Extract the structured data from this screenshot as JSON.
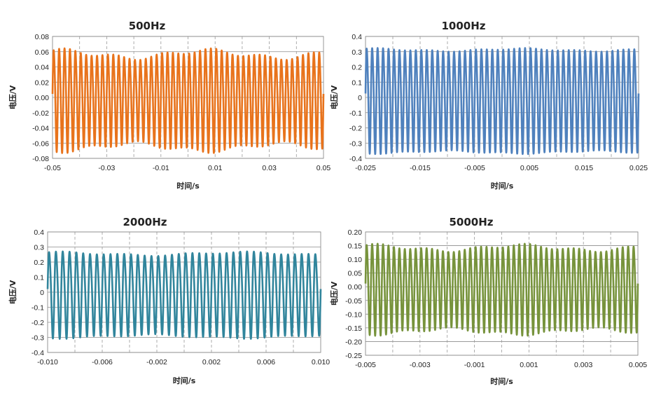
{
  "chart_data": [
    {
      "type": "line",
      "title": "500Hz",
      "xlabel": "时间/s",
      "ylabel": "电压/V",
      "xlim": [
        -0.05,
        0.05
      ],
      "ylim": [
        -0.08,
        0.08
      ],
      "xticks": [
        "-0.05",
        "-0.03",
        "-0.01",
        "0.01",
        "0.03",
        "0.05"
      ],
      "yticks": [
        "0.08",
        "0.06",
        "0.04",
        "0.02",
        "0.00",
        "-0.02",
        "-0.04",
        "-0.06",
        "-0.08"
      ],
      "color": "#E8731C",
      "series": [
        {
          "cycles": 50,
          "amplitude": 0.06,
          "amplitude_variation": 0.005
        }
      ]
    },
    {
      "type": "line",
      "title": "1000Hz",
      "xlabel": "时间/s",
      "ylabel": "电压/V",
      "xlim": [
        -0.025,
        0.025
      ],
      "ylim": [
        -0.4,
        0.4
      ],
      "xticks": [
        "-0.025",
        "-0.015",
        "-0.005",
        "0.005",
        "0.015",
        "0.025"
      ],
      "yticks": [
        "0.4",
        "0.3",
        "0.2",
        "0.1",
        "0",
        "-0.1",
        "-0.2",
        "-0.3",
        "-0.4"
      ],
      "color": "#4F81BD",
      "series": [
        {
          "cycles": 50,
          "amplitude": 0.33,
          "amplitude_variation": 0.008
        }
      ]
    },
    {
      "type": "line",
      "title": "2000Hz",
      "xlabel": "时间/s",
      "ylabel": "电压/V",
      "xlim": [
        -0.01,
        0.01
      ],
      "ylim": [
        -0.4,
        0.4
      ],
      "xticks": [
        "-0.010",
        "-0.006",
        "-0.002",
        "0.002",
        "0.006",
        "0.010"
      ],
      "yticks": [
        "0.4",
        "0.3",
        "0.2",
        "0.1",
        "0",
        "-0.1",
        "-0.2",
        "-0.3",
        "-0.4"
      ],
      "color": "#31859C",
      "series": [
        {
          "cycles": 40,
          "amplitude": 0.27,
          "amplitude_variation": 0.01
        }
      ]
    },
    {
      "type": "line",
      "title": "5000Hz",
      "xlabel": "时间/s",
      "ylabel": "电压/V",
      "xlim": [
        -0.005,
        0.005
      ],
      "ylim": [
        -0.25,
        0.2
      ],
      "xticks": [
        "-0.005",
        "-0.003",
        "-0.001",
        "0.001",
        "0.003",
        "0.005"
      ],
      "yticks": [
        "0.20",
        "0.15",
        "0.10",
        "0.05",
        "0.00",
        "-0.05",
        "-0.10",
        "-0.15",
        "-0.20",
        "-0.25"
      ],
      "color": "#77933C",
      "series": [
        {
          "cycles": 50,
          "amplitude": 0.15,
          "amplitude_variation": 0.01
        }
      ]
    }
  ]
}
